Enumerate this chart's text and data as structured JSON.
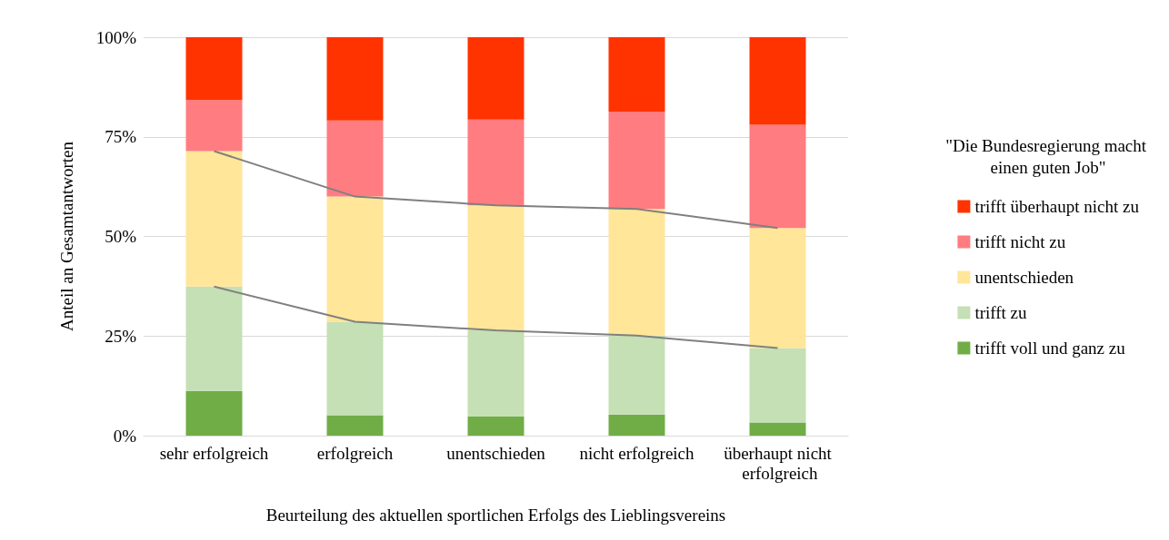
{
  "chart_data": {
    "type": "bar",
    "stacked": true,
    "xlabel": "Beurteilung des aktuellen sportlichen Erfolgs des Lieblingsvereins",
    "ylabel": "Anteil an Gesamtantworten",
    "legend_title": "\"Die Bundesregierung macht einen guten Job\"",
    "categories": [
      "sehr erfolgreich",
      "erfolgreich",
      "unentschieden",
      "nicht erfolgreich",
      "überhaupt nicht erfolgreich"
    ],
    "series": [
      {
        "name": "trifft voll und ganz zu",
        "color": "#70ad47",
        "values": [
          11.2,
          5.1,
          4.8,
          5.3,
          3.3
        ]
      },
      {
        "name": "trifft zu",
        "color": "#c5e0b4",
        "values": [
          26.2,
          23.5,
          21.6,
          19.8,
          18.7
        ]
      },
      {
        "name": "unentschieden",
        "color": "#ffe699",
        "values": [
          34.0,
          31.4,
          31.4,
          31.8,
          30.1
        ]
      },
      {
        "name": "trifft nicht zu",
        "color": "#ff7c80",
        "values": [
          12.8,
          19.1,
          21.5,
          24.4,
          25.9
        ]
      },
      {
        "name": "trifft überhaupt nicht zu",
        "color": "#ff3300",
        "values": [
          15.8,
          20.9,
          20.7,
          18.7,
          22.0
        ]
      },
      {
        "type": "line",
        "color": "#808080",
        "values": [
          37.4,
          28.6,
          26.4,
          25.1,
          22.0
        ]
      },
      {
        "type": "line",
        "color": "#808080",
        "values": [
          71.4,
          60.0,
          57.8,
          56.9,
          52.1
        ]
      }
    ],
    "ylim": [
      0,
      100
    ],
    "yticks": [
      {
        "value": 0,
        "label": "0%"
      },
      {
        "value": 25,
        "label": "25%"
      },
      {
        "value": 50,
        "label": "50%"
      },
      {
        "value": 75,
        "label": "75%"
      },
      {
        "value": 100,
        "label": "100%"
      }
    ],
    "grid": "y",
    "legend": "right",
    "marker": "none"
  }
}
